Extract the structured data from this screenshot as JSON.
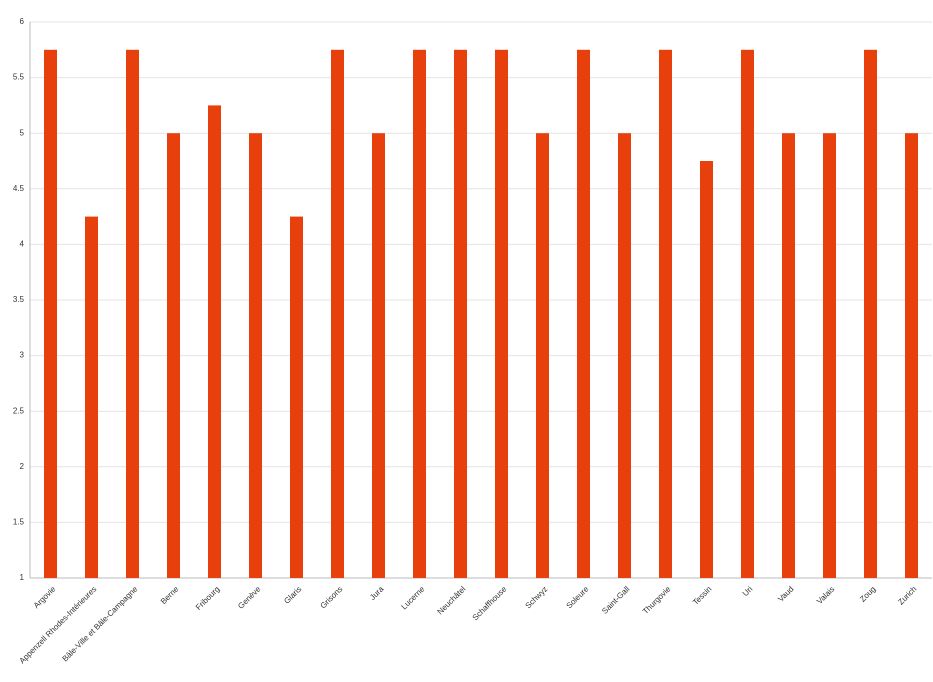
{
  "chart_data": {
    "type": "bar",
    "categories": [
      "Argovie",
      "Appenzell Rhodes-Intérieures",
      "Bâle-Ville et Bâle-Campagne",
      "Berne",
      "Fribourg",
      "Genève",
      "Glaris",
      "Grisons",
      "Jura",
      "Lucerne",
      "Neuchâtel",
      "Schaffhouse",
      "Schwyz",
      "Soleure",
      "Saint-Gall",
      "Thurgovie",
      "Tessin",
      "Uri",
      "Vaud",
      "Valais",
      "Zoug",
      "Zurich"
    ],
    "values": [
      5.75,
      4.25,
      5.75,
      5,
      5.25,
      5,
      4.25,
      5.75,
      5,
      5.75,
      5.75,
      5.75,
      5,
      5.75,
      5,
      5.75,
      4.75,
      5.75,
      5,
      5,
      5.75,
      5
    ],
    "color": "#e8400c",
    "ylim": [
      1,
      6
    ],
    "yticks": [
      1,
      1.5,
      2,
      2.5,
      3,
      3.5,
      4,
      4.5,
      5,
      5.5,
      6
    ],
    "grid": true
  }
}
